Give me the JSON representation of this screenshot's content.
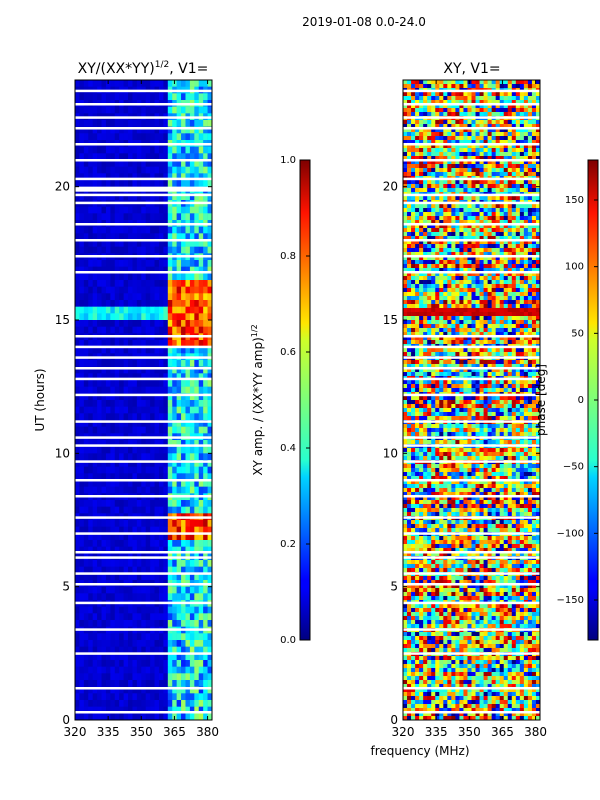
{
  "figure": {
    "suptitle": "2019-01-08 0.0-24.0",
    "shared_xlabel": "frequency (MHz)",
    "shared_ylabel": "UT (hours)"
  },
  "chart_data": [
    {
      "type": "heatmap",
      "title_base": "XY/(XX*YY)",
      "title_exp": "1/2",
      "title_suffix": ", V1=",
      "xlabel": "frequency (MHz)",
      "ylabel": "UT (hours)",
      "xlim": [
        320,
        382
      ],
      "ylim": [
        0,
        24
      ],
      "xticks": [
        320,
        335,
        350,
        365,
        380
      ],
      "yticks": [
        0,
        5,
        10,
        15,
        20
      ],
      "colormap": "jet",
      "colorbar": {
        "label_main": "XY amp. / (XX*YY amp)",
        "label_exp": "1/2",
        "range": [
          0.0,
          1.0
        ],
        "ticks": [
          "0.0",
          "0.2",
          "0.4",
          "0.6",
          "0.8",
          "1.0"
        ],
        "tick_values": [
          0.0,
          0.2,
          0.4,
          0.6,
          0.8,
          1.0
        ]
      },
      "bright_band_freq_range": [
        362,
        382
      ],
      "bright_ut_hours": [
        7.3,
        14.5,
        15.3,
        16.0
      ],
      "gap_ut_hours": [
        0.3,
        1.2,
        2.5,
        3.4,
        4.4,
        5.1,
        5.5,
        6.1,
        6.3,
        7.0,
        7.6,
        8.4,
        9.0,
        9.7,
        10.3,
        10.6,
        11.2,
        12.2,
        12.8,
        13.2,
        13.6,
        14.0,
        14.4,
        16.8,
        17.4,
        18.0,
        18.6,
        19.4,
        19.7,
        20.3,
        21.0,
        21.6,
        22.2,
        22.6,
        23.1,
        23.6
      ]
    },
    {
      "type": "heatmap",
      "title_base": "XY, V1=",
      "xlabel": "frequency (MHz)",
      "ylabel": "",
      "xlim": [
        320,
        382
      ],
      "ylim": [
        0,
        24
      ],
      "xticks": [
        320,
        335,
        350,
        365,
        380
      ],
      "yticks": [
        0,
        5,
        10,
        15,
        20
      ],
      "colormap": "jet",
      "colorbar": {
        "label_main": "phase [deg]",
        "range": [
          -180,
          180
        ],
        "ticks": [
          "−150",
          "−100",
          "−50",
          "0",
          "50",
          "100",
          "150"
        ],
        "tick_values": [
          -150,
          -100,
          -50,
          0,
          50,
          100,
          150
        ]
      },
      "red_band_ut_hours": [
        15.1,
        15.3
      ],
      "gap_ut_hours": [
        0.3,
        1.2,
        2.5,
        3.4,
        4.4,
        5.1,
        5.5,
        6.1,
        6.3,
        7.0,
        7.6,
        8.4,
        9.0,
        9.7,
        10.3,
        10.6,
        11.2,
        12.2,
        12.8,
        13.2,
        13.6,
        14.0,
        14.4,
        16.8,
        17.4,
        18.0,
        18.6,
        19.4,
        19.7,
        20.3,
        21.0,
        21.6,
        22.2,
        22.6,
        23.1,
        23.6
      ]
    }
  ]
}
